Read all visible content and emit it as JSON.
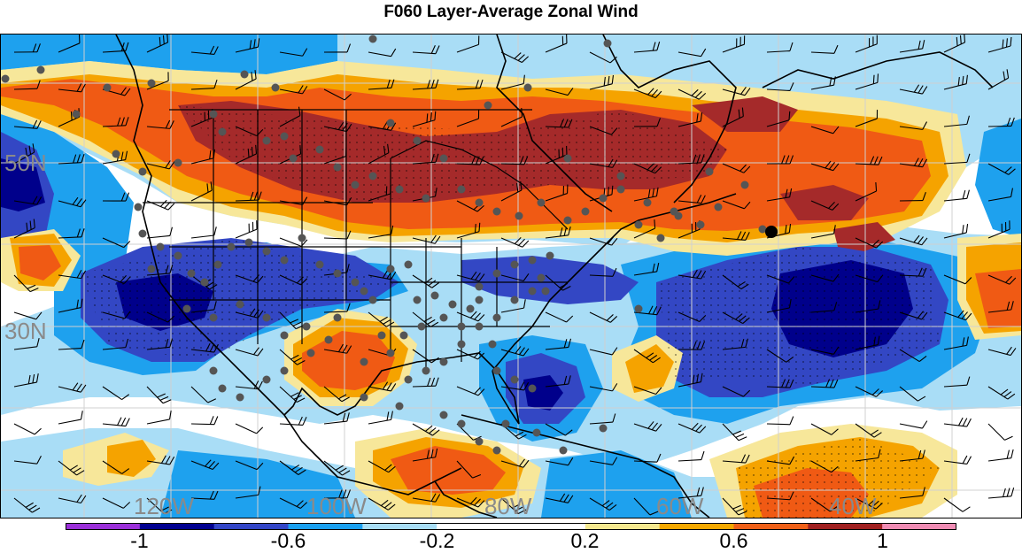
{
  "title": "F060 Layer-Average Zonal Wind",
  "map": {
    "lat_labels": [
      "50N",
      "30N"
    ],
    "lon_labels": [
      "120W",
      "100W",
      "80W",
      "60W",
      "40W"
    ]
  },
  "colorbar": {
    "colors": [
      "#9b30d9",
      "#000090",
      "#3346c8",
      "#1aa0f0",
      "#a8ddf5",
      "#ffffff",
      "#ffffff",
      "#f5e88f",
      "#f5a800",
      "#f06018",
      "#a02020",
      "#f08cb4"
    ],
    "labels": [
      "-1",
      "-0.6",
      "-0.2",
      "0.2",
      "0.6",
      "1"
    ],
    "label_fracs": [
      0.083,
      0.25,
      0.417,
      0.583,
      0.75,
      0.917
    ]
  },
  "palette": {
    "dark_red": "#a52a2a",
    "red_orange": "#f05a14",
    "orange": "#f5a300",
    "light_yellow": "#f7e79a",
    "light_blue": "#a9ddf6",
    "sky_blue": "#1ea1ee",
    "medium_blue": "#3347c4",
    "navy": "#00008b",
    "station_gray": "#555555",
    "grid_gray": "#d0d0d0"
  }
}
